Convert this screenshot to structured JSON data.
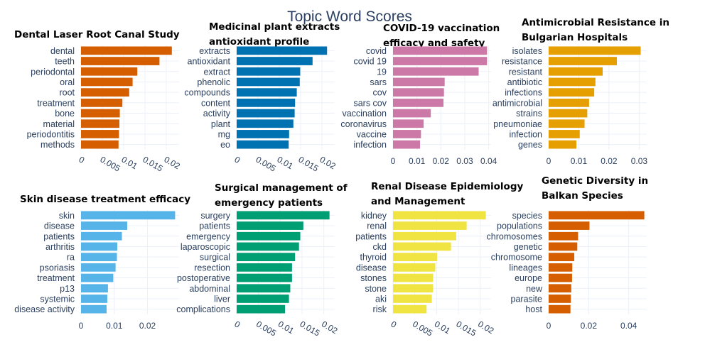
{
  "chart_data": {
    "type": "bar",
    "title": "Topic Word Scores",
    "orientation": "horizontal",
    "grid": true,
    "panels": [
      {
        "title": [
          "Dental Laser Root Canal Study"
        ],
        "color": "#d55e00",
        "categories": [
          "dental",
          "teeth",
          "periodontal",
          "oral",
          "root",
          "treatment",
          "bone",
          "material",
          "periodontitis",
          "methods"
        ],
        "values": [
          0.0213,
          0.0184,
          0.0132,
          0.0121,
          0.0113,
          0.0097,
          0.0091,
          0.009,
          0.0089,
          0.0088
        ],
        "xlim": [
          0,
          0.023
        ],
        "ticks": [
          0,
          0.005,
          0.01,
          0.015,
          0.02
        ],
        "tick_labels": [
          "0",
          "0.005",
          "0.01",
          "0.015",
          "0.02"
        ],
        "tick_rotated": true
      },
      {
        "title": [
          "Medicinal plant extracts",
          "antioxidant profile"
        ],
        "color": "#0072b2",
        "categories": [
          "extracts",
          "antioxidant",
          "extract",
          "phenolic",
          "compounds",
          "content",
          "activity",
          "plant",
          "mg",
          "eo"
        ],
        "values": [
          0.0212,
          0.0178,
          0.0149,
          0.0148,
          0.0141,
          0.0137,
          0.0136,
          0.0133,
          0.0123,
          0.0122
        ],
        "xlim": [
          0,
          0.023
        ],
        "ticks": [
          0,
          0.005,
          0.01,
          0.015,
          0.02
        ],
        "tick_labels": [
          "0",
          "0.005",
          "0.01",
          "0.015",
          "0.02"
        ],
        "tick_rotated": true
      },
      {
        "title": [
          "COVID-19 vaccination",
          "efficacy and safety"
        ],
        "color": "#cc79a7",
        "categories": [
          "covid",
          "covid 19",
          "19",
          "sars",
          "cov",
          "sars cov",
          "vaccination",
          "coronavirus",
          "vaccine",
          "infection"
        ],
        "values": [
          0.0393,
          0.0393,
          0.0358,
          0.0216,
          0.0213,
          0.0211,
          0.0158,
          0.0128,
          0.0117,
          0.0113
        ],
        "xlim": [
          0,
          0.041
        ],
        "ticks": [
          0,
          0.01,
          0.02,
          0.03,
          0.04
        ],
        "tick_labels": [
          "0",
          "0.01",
          "0.02",
          "0.03",
          "0.04"
        ],
        "tick_rotated": false
      },
      {
        "title": [
          "Antimicrobial Resistance in",
          "Bulgarian Hospitals"
        ],
        "color": "#e69f00",
        "categories": [
          "isolates",
          "resistance",
          "resistant",
          "antibiotic",
          "infections",
          "antimicrobial",
          "strains",
          "pneumoniae",
          "infection",
          "genes"
        ],
        "values": [
          0.0305,
          0.0226,
          0.0179,
          0.0155,
          0.0151,
          0.0134,
          0.0128,
          0.0119,
          0.0103,
          0.0092
        ],
        "xlim": [
          0,
          0.0325
        ],
        "ticks": [
          0,
          0.01,
          0.02,
          0.03
        ],
        "tick_labels": [
          "0",
          "0.01",
          "0.02",
          "0.03"
        ],
        "tick_rotated": false
      },
      {
        "title": [
          "Skin disease treatment efficacy"
        ],
        "color": "#56b4e9",
        "categories": [
          "skin",
          "disease",
          "patients",
          "arthritis",
          "ra",
          "psoriasis",
          "treatment",
          "p13",
          "systemic",
          "disease activity"
        ],
        "values": [
          0.0283,
          0.0139,
          0.0123,
          0.0109,
          0.0108,
          0.0104,
          0.0097,
          0.0081,
          0.0079,
          0.0077
        ],
        "xlim": [
          0,
          0.0295
        ],
        "ticks": [
          0,
          0.01,
          0.02
        ],
        "tick_labels": [
          "0",
          "0.01",
          "0.02"
        ],
        "tick_rotated": false
      },
      {
        "title": [
          "Surgical management of",
          "emergency patients"
        ],
        "color": "#009e73",
        "categories": [
          "surgery",
          "patients",
          "emergency",
          "laparoscopic",
          "surgical",
          "resection",
          "postoperative",
          "abdominal",
          "liver",
          "complications"
        ],
        "values": [
          0.0213,
          0.0153,
          0.0146,
          0.0143,
          0.0134,
          0.0127,
          0.0127,
          0.0123,
          0.012,
          0.0111
        ],
        "xlim": [
          0,
          0.0225
        ],
        "ticks": [
          0,
          0.005,
          0.01,
          0.015,
          0.02
        ],
        "tick_labels": [
          "0",
          "0.005",
          "0.01",
          "0.015",
          "0.02"
        ],
        "tick_rotated": true
      },
      {
        "title": [
          "Renal Disease Epidemiology",
          "and Management"
        ],
        "color": "#f0e442",
        "categories": [
          "kidney",
          "renal",
          "patients",
          "ckd",
          "thyroid",
          "disease",
          "stones",
          "stone",
          "aki",
          "risk"
        ],
        "values": [
          0.0213,
          0.0169,
          0.0145,
          0.0133,
          0.0101,
          0.0097,
          0.0092,
          0.0092,
          0.0089,
          0.0077
        ],
        "xlim": [
          0,
          0.0225
        ],
        "ticks": [
          0,
          0.005,
          0.01,
          0.015,
          0.02
        ],
        "tick_labels": [
          "0",
          "0.005",
          "0.01",
          "0.015",
          "0.02"
        ],
        "tick_rotated": true
      },
      {
        "title": [
          "Genetic Diversity in",
          "Balkan Species"
        ],
        "color": "#d55e00",
        "categories": [
          "species",
          "populations",
          "chromosomes",
          "genetic",
          "chromosome",
          "lineages",
          "europe",
          "new",
          "parasite",
          "host"
        ],
        "values": [
          0.0478,
          0.0204,
          0.0147,
          0.0143,
          0.0128,
          0.0118,
          0.0117,
          0.0113,
          0.0111,
          0.0109
        ],
        "xlim": [
          0,
          0.049
        ],
        "ticks": [
          0,
          0.02,
          0.04
        ],
        "tick_labels": [
          "0",
          "0.02",
          "0.04"
        ],
        "tick_rotated": false
      }
    ]
  }
}
